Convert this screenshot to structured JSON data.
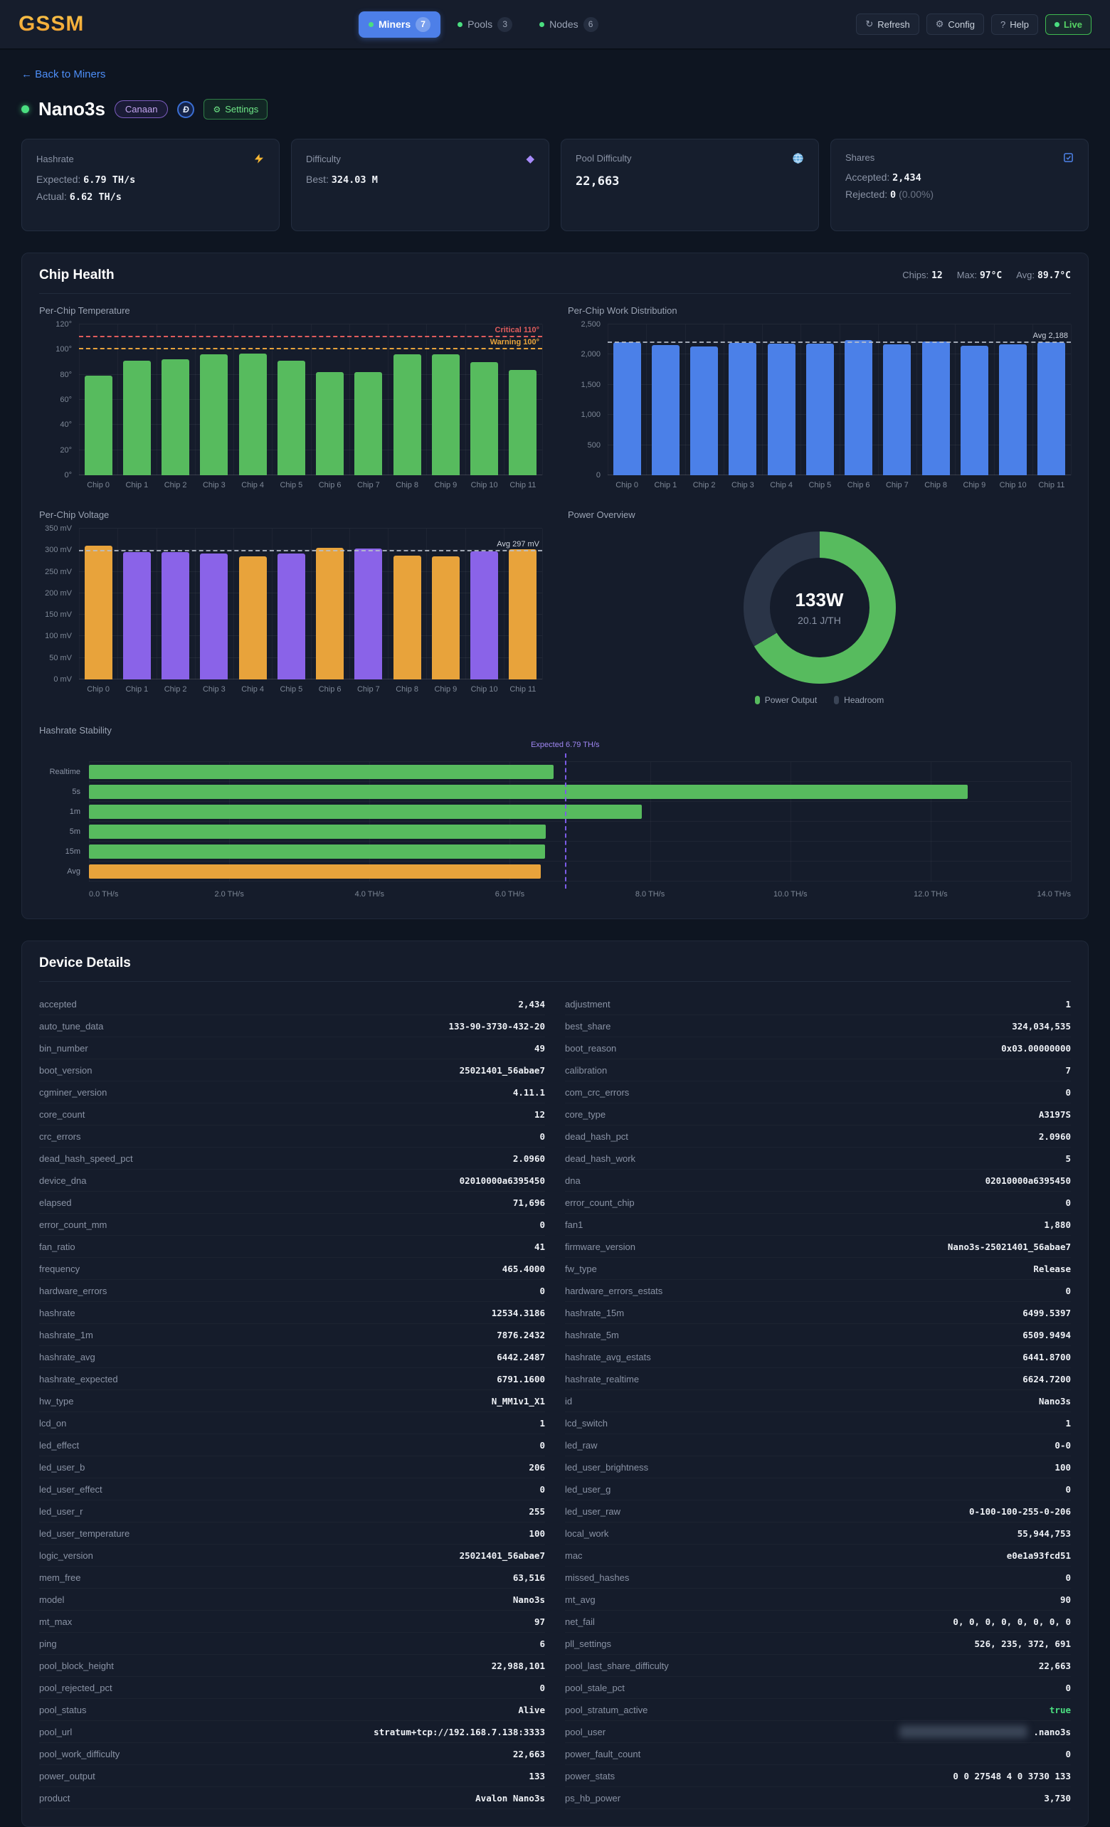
{
  "app": {
    "logo": "GSSM"
  },
  "nav": {
    "tabs": [
      {
        "label": "Miners",
        "count": "7"
      },
      {
        "label": "Pools",
        "count": "3"
      },
      {
        "label": "Nodes",
        "count": "6"
      }
    ]
  },
  "actions": {
    "refresh": "Refresh",
    "config": "Config",
    "help": "Help",
    "live": "Live"
  },
  "page": {
    "back_link": "← Back to Miners",
    "miner_name": "Nano3s",
    "vendor": "Canaan",
    "coin_symbol": "Đ",
    "settings": "Settings"
  },
  "stat_cards": {
    "hashrate": {
      "title": "Hashrate",
      "expected_label": "Expected:",
      "expected": "6.79 TH/s",
      "actual_label": "Actual:",
      "actual": "6.62 TH/s"
    },
    "difficulty": {
      "title": "Difficulty",
      "best_label": "Best:",
      "best": "324.03 M"
    },
    "pool_difficulty": {
      "title": "Pool Difficulty",
      "value": "22,663"
    },
    "shares": {
      "title": "Shares",
      "accepted_label": "Accepted:",
      "accepted": "2,434",
      "rejected_label": "Rejected:",
      "rejected": "0",
      "rejected_pct": "(0.00%)"
    }
  },
  "chip_health": {
    "title": "Chip Health",
    "stats": [
      {
        "label": "Chips:",
        "value": "12"
      },
      {
        "label": "Max:",
        "value": "97°C"
      },
      {
        "label": "Avg:",
        "value": "89.7°C"
      }
    ]
  },
  "chart_data": [
    {
      "id": "temperature",
      "type": "bar",
      "title": "Per-Chip Temperature",
      "categories": [
        "Chip 0",
        "Chip 1",
        "Chip 2",
        "Chip 3",
        "Chip 4",
        "Chip 5",
        "Chip 6",
        "Chip 7",
        "Chip 8",
        "Chip 9",
        "Chip 10",
        "Chip 11"
      ],
      "values": [
        79,
        91,
        92,
        96,
        97,
        91,
        82,
        82,
        96,
        96,
        90,
        84
      ],
      "bar_color": "#57bb5e",
      "ylim": [
        0,
        120
      ],
      "yticks": [
        0,
        20,
        40,
        60,
        80,
        100,
        120
      ],
      "ytick_labels": [
        "0°",
        "20°",
        "40°",
        "60°",
        "80°",
        "100°",
        "120°"
      ],
      "thresholds": [
        {
          "value": 110,
          "label": "Critical 110°",
          "color": "#e05c5c"
        },
        {
          "value": 100,
          "label": "Warning 100°",
          "color": "#e8a33b"
        }
      ]
    },
    {
      "id": "work",
      "type": "bar",
      "title": "Per-Chip Work Distribution",
      "categories": [
        "Chip 0",
        "Chip 1",
        "Chip 2",
        "Chip 3",
        "Chip 4",
        "Chip 5",
        "Chip 6",
        "Chip 7",
        "Chip 8",
        "Chip 9",
        "Chip 10",
        "Chip 11"
      ],
      "values": [
        2205,
        2160,
        2140,
        2195,
        2185,
        2180,
        2235,
        2165,
        2215,
        2150,
        2175,
        2200
      ],
      "bar_color": "#4b80e8",
      "ylim": [
        0,
        2500
      ],
      "yticks": [
        0,
        500,
        1000,
        1500,
        2000,
        2500
      ],
      "ytick_labels": [
        "0",
        "500",
        "1,000",
        "1,500",
        "2,000",
        "2,500"
      ],
      "avg_line": {
        "value": 2188,
        "label": "Avg 2,188"
      }
    },
    {
      "id": "voltage",
      "type": "bar",
      "title": "Per-Chip Voltage",
      "categories": [
        "Chip 0",
        "Chip 1",
        "Chip 2",
        "Chip 3",
        "Chip 4",
        "Chip 5",
        "Chip 6",
        "Chip 7",
        "Chip 8",
        "Chip 9",
        "Chip 10",
        "Chip 11"
      ],
      "values": [
        311,
        296,
        295,
        293,
        286,
        292,
        305,
        303,
        288,
        285,
        297,
        302
      ],
      "colors": [
        "#e8a33b",
        "#8a63e8",
        "#8a63e8",
        "#8a63e8",
        "#e8a33b",
        "#8a63e8",
        "#e8a33b",
        "#8a63e8",
        "#e8a33b",
        "#e8a33b",
        "#8a63e8",
        "#e8a33b"
      ],
      "ylim": [
        0,
        350
      ],
      "yticks": [
        0,
        50,
        100,
        150,
        200,
        250,
        300,
        350
      ],
      "ytick_labels": [
        "0 mV",
        "50 mV",
        "100 mV",
        "150 mV",
        "200 mV",
        "250 mV",
        "300 mV",
        "350 mV"
      ],
      "avg_line": {
        "value": 297,
        "label": "Avg 297 mV"
      }
    },
    {
      "id": "power",
      "type": "donut",
      "title": "Power Overview",
      "center_value": "133W",
      "center_sub": "20.1 J/TH",
      "fraction": 0.665,
      "color": "#57bb5e",
      "track_color": "#2a3447",
      "legend": [
        {
          "label": "Power Output",
          "color": "#57bb5e"
        },
        {
          "label": "Headroom",
          "color": "#3a4456"
        }
      ]
    },
    {
      "id": "stability",
      "type": "hbar",
      "title": "Hashrate Stability",
      "categories": [
        "Realtime",
        "5s",
        "1m",
        "5m",
        "15m",
        "Avg"
      ],
      "values": [
        6.62,
        12.53,
        7.88,
        6.51,
        6.5,
        6.44
      ],
      "colors": [
        "#57bb5e",
        "#57bb5e",
        "#57bb5e",
        "#57bb5e",
        "#57bb5e",
        "#e8a33b"
      ],
      "xlim": [
        0,
        14
      ],
      "xticks": [
        0,
        2,
        4,
        6,
        8,
        10,
        12,
        14
      ],
      "xtick_labels": [
        "0.0 TH/s",
        "2.0 TH/s",
        "4.0 TH/s",
        "6.0 TH/s",
        "8.0 TH/s",
        "10.0 TH/s",
        "12.0 TH/s",
        "14.0 TH/s"
      ],
      "expected_line": {
        "value": 6.79,
        "label": "Expected 6.79 TH/s"
      }
    }
  ],
  "device_details": {
    "title": "Device Details",
    "pairs": [
      [
        "accepted",
        "2,434"
      ],
      [
        "adjustment",
        "1"
      ],
      [
        "auto_tune_data",
        "133-90-3730-432-20"
      ],
      [
        "best_share",
        "324,034,535"
      ],
      [
        "bin_number",
        "49"
      ],
      [
        "boot_reason",
        "0x03.00000000"
      ],
      [
        "boot_version",
        "25021401_56abae7"
      ],
      [
        "calibration",
        "7"
      ],
      [
        "cgminer_version",
        "4.11.1"
      ],
      [
        "com_crc_errors",
        "0"
      ],
      [
        "core_count",
        "12"
      ],
      [
        "core_type",
        "A3197S"
      ],
      [
        "crc_errors",
        "0"
      ],
      [
        "dead_hash_pct",
        "2.0960"
      ],
      [
        "dead_hash_speed_pct",
        "2.0960"
      ],
      [
        "dead_hash_work",
        "5"
      ],
      [
        "device_dna",
        "02010000a6395450"
      ],
      [
        "dna",
        "02010000a6395450"
      ],
      [
        "elapsed",
        "71,696"
      ],
      [
        "error_count_chip",
        "0"
      ],
      [
        "error_count_mm",
        "0"
      ],
      [
        "fan1",
        "1,880"
      ],
      [
        "fan_ratio",
        "41"
      ],
      [
        "firmware_version",
        "Nano3s-25021401_56abae7"
      ],
      [
        "frequency",
        "465.4000"
      ],
      [
        "fw_type",
        "Release"
      ],
      [
        "hardware_errors",
        "0"
      ],
      [
        "hardware_errors_estats",
        "0"
      ],
      [
        "hashrate",
        "12534.3186"
      ],
      [
        "hashrate_15m",
        "6499.5397"
      ],
      [
        "hashrate_1m",
        "7876.2432"
      ],
      [
        "hashrate_5m",
        "6509.9494"
      ],
      [
        "hashrate_avg",
        "6442.2487"
      ],
      [
        "hashrate_avg_estats",
        "6441.8700"
      ],
      [
        "hashrate_expected",
        "6791.1600"
      ],
      [
        "hashrate_realtime",
        "6624.7200"
      ],
      [
        "hw_type",
        "N_MM1v1_X1"
      ],
      [
        "id",
        "Nano3s"
      ],
      [
        "lcd_on",
        "1"
      ],
      [
        "lcd_switch",
        "1"
      ],
      [
        "led_effect",
        "0"
      ],
      [
        "led_raw",
        "0-0"
      ],
      [
        "led_user_b",
        "206"
      ],
      [
        "led_user_brightness",
        "100"
      ],
      [
        "led_user_effect",
        "0"
      ],
      [
        "led_user_g",
        "0"
      ],
      [
        "led_user_r",
        "255"
      ],
      [
        "led_user_raw",
        "0-100-100-255-0-206"
      ],
      [
        "led_user_temperature",
        "100"
      ],
      [
        "local_work",
        "55,944,753"
      ],
      [
        "logic_version",
        "25021401_56abae7"
      ],
      [
        "mac",
        "e0e1a93fcd51"
      ],
      [
        "mem_free",
        "63,516"
      ],
      [
        "missed_hashes",
        "0"
      ],
      [
        "model",
        "Nano3s"
      ],
      [
        "mt_avg",
        "90"
      ],
      [
        "mt_max",
        "97"
      ],
      [
        "net_fail",
        "0, 0, 0, 0, 0, 0, 0, 0"
      ],
      [
        "ping",
        "6"
      ],
      [
        "pll_settings",
        "526, 235, 372, 691"
      ],
      [
        "pool_block_height",
        "22,988,101"
      ],
      [
        "pool_last_share_difficulty",
        "22,663"
      ],
      [
        "pool_rejected_pct",
        "0"
      ],
      [
        "pool_stale_pct",
        "0"
      ],
      [
        "pool_status",
        "Alive"
      ],
      [
        "pool_stratum_active",
        "true"
      ],
      [
        "pool_url",
        "stratum+tcp://192.168.7.138:3333"
      ],
      [
        "pool_user",
        ".nano3s"
      ],
      [
        "pool_work_difficulty",
        "22,663"
      ],
      [
        "power_fault_count",
        "0"
      ],
      [
        "power_output",
        "133"
      ],
      [
        "power_stats",
        "0 0 27548 4 0 3730 133"
      ],
      [
        "product",
        "Avalon Nano3s"
      ],
      [
        "ps_hb_power",
        "3,730"
      ]
    ]
  }
}
